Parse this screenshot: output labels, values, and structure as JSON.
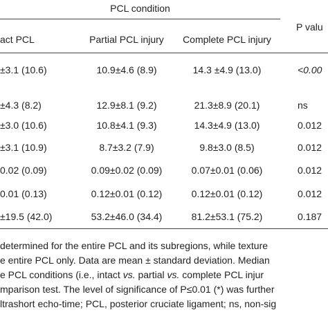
{
  "table": {
    "group_header": "PCL condition",
    "p_header": "P valu",
    "columns": [
      "act PCL",
      "Partial PCL injury",
      "Complete PCL injury"
    ],
    "rows": [
      [
        "±3.1 (10.6)",
        "10.9±4.6 (8.9)",
        "14.3 ±4.9 (13.0)",
        "<0.00"
      ],
      [
        "±4.3 (8.2)",
        "12.9±8.1 (9.2)",
        "21.3±8.9 (20.1)",
        "ns"
      ],
      [
        "±3.0 (10.6)",
        "10.8±4.1 (9.3)",
        "14.3±4.9 (13.0)",
        "0.012"
      ],
      [
        "±3.1 (10.9)",
        "8.7±3.2 (7.9)",
        "9.8±3.0 (8.5)",
        "0.012"
      ],
      [
        "0.02 (0.09)",
        "0.09±0.02 (0.09)",
        "0.07±0.01 (0.06)",
        "0.012"
      ],
      [
        "0.01 (0.13)",
        "0.12±0.01 (0.12)",
        "0.12±0.01 (0.12)",
        "0.012"
      ],
      [
        "±19.5 (42.0)",
        "53.2±46.0 (34.4)",
        "81.2±53.1 (75.2)",
        "0.187"
      ]
    ],
    "row_tops": [
      101,
      152,
      181,
      213,
      246,
      280,
      313
    ]
  },
  "footnote": [
    [
      "determined for the entire PCL and its subregions, while texture"
    ],
    [
      "e entire PCL only. Data are mean ± standard deviation. Median"
    ],
    [
      "e PCL conditions (i.e., intact ",
      "vs.",
      " partial ",
      "vs.",
      " complete PCL injur"
    ],
    [
      "mparison test. The level of significance of P≤0.01 (*) was further"
    ],
    [
      "ltrashort echo-time; PCL, posterior cruciate ligament; ns, non-sig"
    ]
  ]
}
